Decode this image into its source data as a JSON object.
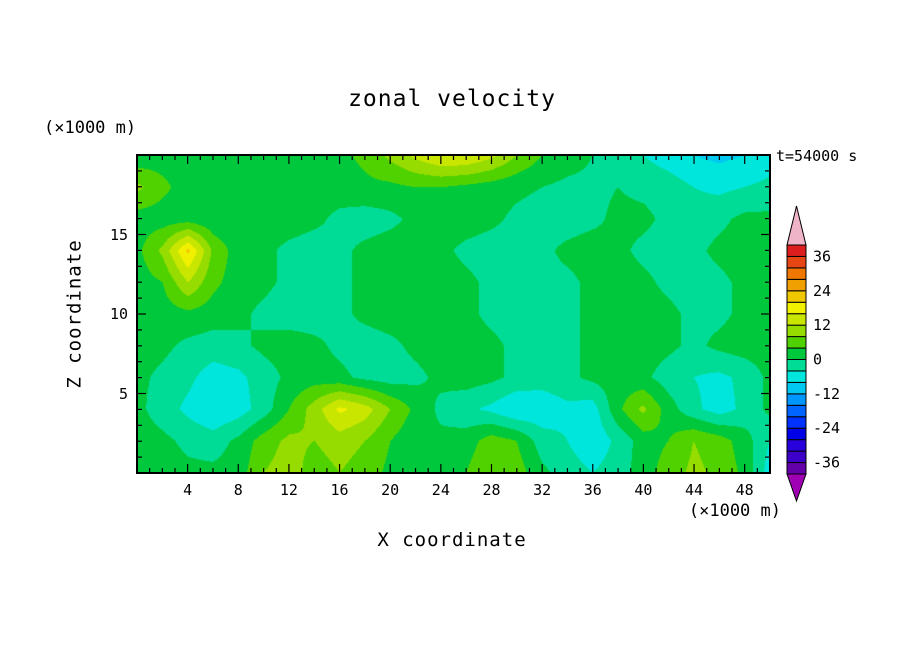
{
  "title": "zonal velocity",
  "annotations": {
    "time": "t=54000 s",
    "z_axis_unit": "(×1000 m)",
    "x_axis_unit": "(×1000 m)"
  },
  "chart_data": {
    "type": "heatmap",
    "title": "zonal velocity",
    "xlabel": "X coordinate",
    "ylabel": "Z coordinate",
    "x_unit": "(×1000 m)",
    "z_unit": "(×1000 m)",
    "time_annotation": "t=54000 s",
    "x_range": [
      0,
      50
    ],
    "z_range": [
      0,
      20
    ],
    "x_ticks": [
      4,
      8,
      12,
      16,
      20,
      24,
      28,
      32,
      36,
      40,
      44,
      48
    ],
    "z_ticks": [
      5,
      10,
      15
    ],
    "x_minor_tick_step": 1,
    "z_minor_tick_step": 1,
    "colorbar": {
      "tick_values": [
        36,
        24,
        12,
        0,
        -12,
        -24,
        -36
      ],
      "levels": [
        -40,
        -36,
        -32,
        -28,
        -24,
        -20,
        -16,
        -12,
        -8,
        -4,
        0,
        4,
        8,
        12,
        16,
        20,
        24,
        28,
        32,
        36,
        40
      ],
      "colors": [
        "#A000B4",
        "#6400AA",
        "#3C00C8",
        "#2800DC",
        "#0000E6",
        "#0032FF",
        "#0064FF",
        "#0096FF",
        "#00C8F0",
        "#00E6DC",
        "#00DC96",
        "#00C83C",
        "#50D200",
        "#96DC00",
        "#C8E600",
        "#F0F000",
        "#F0C800",
        "#F0A000",
        "#F07800",
        "#E64614",
        "#DC1E1E",
        "#F0B4C8"
      ]
    },
    "grid": {
      "x": [
        0,
        2,
        4,
        6,
        8,
        10,
        12,
        14,
        16,
        18,
        20,
        22,
        24,
        26,
        28,
        30,
        32,
        34,
        36,
        38,
        40,
        42,
        44,
        46,
        48,
        50
      ],
      "z": [
        20,
        18,
        16,
        14,
        12,
        10,
        8,
        6,
        4,
        2,
        0
      ],
      "values": [
        [
          1,
          2,
          2,
          1,
          2,
          2,
          2,
          3,
          3,
          5,
          9,
          13,
          16,
          16,
          13,
          8,
          4,
          2,
          0,
          -2,
          -4,
          -6,
          -8,
          -9,
          -8,
          -6
        ],
        [
          9,
          5,
          2,
          2,
          2,
          2,
          2,
          2,
          2,
          3,
          3,
          4,
          4,
          3,
          2,
          1,
          0,
          -1,
          -1,
          0,
          -1,
          -2,
          -4,
          -5,
          -4,
          -3
        ],
        [
          2,
          2,
          2,
          1,
          1,
          2,
          2,
          1,
          -1,
          -2,
          -1,
          1,
          2,
          2,
          1,
          -1,
          -2,
          -2,
          -1,
          1,
          1,
          -1,
          -2,
          -1,
          1,
          1
        ],
        [
          3,
          9,
          21,
          7,
          2,
          1,
          -1,
          -2,
          -1,
          1,
          2,
          2,
          1,
          -1,
          -2,
          -2,
          -1,
          1,
          2,
          1,
          -1,
          -2,
          -1,
          1,
          2,
          2
        ],
        [
          2,
          4,
          12,
          5,
          2,
          1,
          -1,
          -2,
          -1,
          1,
          1,
          2,
          2,
          1,
          -1,
          -2,
          -1,
          -1,
          1,
          2,
          1,
          -1,
          -2,
          -1,
          1,
          2
        ],
        [
          1,
          2,
          3,
          2,
          1,
          -1,
          -2,
          -2,
          -1,
          1,
          2,
          2,
          1,
          1,
          -1,
          -2,
          -2,
          -1,
          1,
          1,
          2,
          1,
          -1,
          -1,
          1,
          1
        ],
        [
          2,
          1,
          -1,
          -2,
          -1,
          1,
          2,
          1,
          -1,
          -2,
          -1,
          1,
          2,
          2,
          1,
          -1,
          -2,
          -1,
          1,
          2,
          2,
          1,
          -1,
          1,
          2,
          2
        ],
        [
          1,
          -1,
          -3,
          -6,
          -5,
          -2,
          1,
          2,
          1,
          -1,
          -2,
          -1,
          1,
          2,
          1,
          -1,
          -2,
          -1,
          1,
          2,
          1,
          -2,
          -4,
          -5,
          -3,
          1
        ],
        [
          1,
          -2,
          -5,
          -8,
          -6,
          -2,
          4,
          10,
          17,
          14,
          8,
          3,
          -1,
          -3,
          -5,
          -8,
          -7,
          -5,
          -6,
          3,
          9,
          2,
          -3,
          -6,
          -3,
          1
        ],
        [
          2,
          1,
          -1,
          -2,
          1,
          6,
          9,
          8,
          10,
          8,
          4,
          1,
          1,
          2,
          6,
          4,
          -2,
          -4,
          -7,
          -3,
          2,
          4,
          8,
          6,
          2,
          -4
        ],
        [
          2,
          2,
          1,
          1,
          2,
          8,
          10,
          6,
          8,
          6,
          3,
          1,
          2,
          4,
          8,
          6,
          1,
          -2,
          -4,
          -2,
          2,
          6,
          9,
          7,
          3,
          -6
        ]
      ]
    }
  }
}
